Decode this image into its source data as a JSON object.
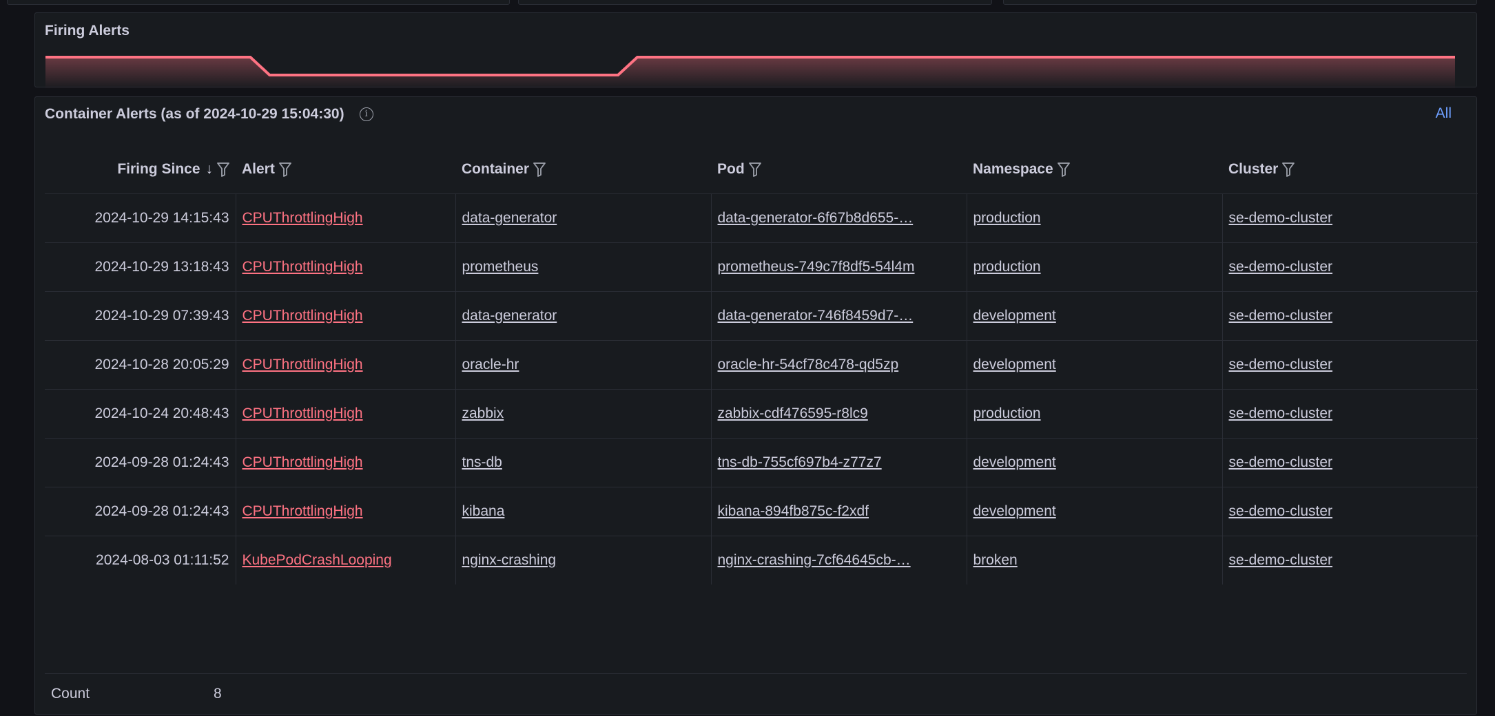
{
  "firing_alerts_panel": {
    "title": "Firing Alerts",
    "line_color": "#ff7383",
    "chart_data": {
      "type": "area",
      "values": [
        1,
        1,
        1,
        1,
        0,
        0,
        0,
        0,
        0,
        0,
        1,
        1,
        1,
        1,
        1,
        1,
        1,
        1,
        1,
        1,
        1,
        1,
        1,
        1
      ]
    }
  },
  "alerts_panel": {
    "title": "Container Alerts (as of 2024-10-29 15:04:30)",
    "info_icon": "info-icon",
    "all_link": "All",
    "columns": [
      "Firing Since",
      "Alert",
      "Container",
      "Pod",
      "Namespace",
      "Cluster"
    ],
    "sort_indicator": "↓",
    "rows": [
      {
        "since": "2024-10-29 14:15:43",
        "alert": "CPUThrottlingHigh",
        "container": "data-generator",
        "pod": "data-generator-6f67b8d655-…",
        "namespace": "production",
        "cluster": "se-demo-cluster"
      },
      {
        "since": "2024-10-29 13:18:43",
        "alert": "CPUThrottlingHigh",
        "container": "prometheus",
        "pod": "prometheus-749c7f8df5-54l4m",
        "namespace": "production",
        "cluster": "se-demo-cluster"
      },
      {
        "since": "2024-10-29 07:39:43",
        "alert": "CPUThrottlingHigh",
        "container": "data-generator",
        "pod": "data-generator-746f8459d7-…",
        "namespace": "development",
        "cluster": "se-demo-cluster"
      },
      {
        "since": "2024-10-28 20:05:29",
        "alert": "CPUThrottlingHigh",
        "container": "oracle-hr",
        "pod": "oracle-hr-54cf78c478-qd5zp",
        "namespace": "development",
        "cluster": "se-demo-cluster"
      },
      {
        "since": "2024-10-24 20:48:43",
        "alert": "CPUThrottlingHigh",
        "container": "zabbix",
        "pod": "zabbix-cdf476595-r8lc9",
        "namespace": "production",
        "cluster": "se-demo-cluster"
      },
      {
        "since": "2024-09-28 01:24:43",
        "alert": "CPUThrottlingHigh",
        "container": "tns-db",
        "pod": "tns-db-755cf697b4-z77z7",
        "namespace": "development",
        "cluster": "se-demo-cluster"
      },
      {
        "since": "2024-09-28 01:24:43",
        "alert": "CPUThrottlingHigh",
        "container": "kibana",
        "pod": "kibana-894fb875c-f2xdf",
        "namespace": "development",
        "cluster": "se-demo-cluster"
      },
      {
        "since": "2024-08-03 01:11:52",
        "alert": "KubePodCrashLooping",
        "container": "nginx-crashing",
        "pod": "nginx-crashing-7cf64645cb-…",
        "namespace": "broken",
        "cluster": "se-demo-cluster"
      }
    ],
    "footer": {
      "label": "Count",
      "value": "8"
    }
  }
}
